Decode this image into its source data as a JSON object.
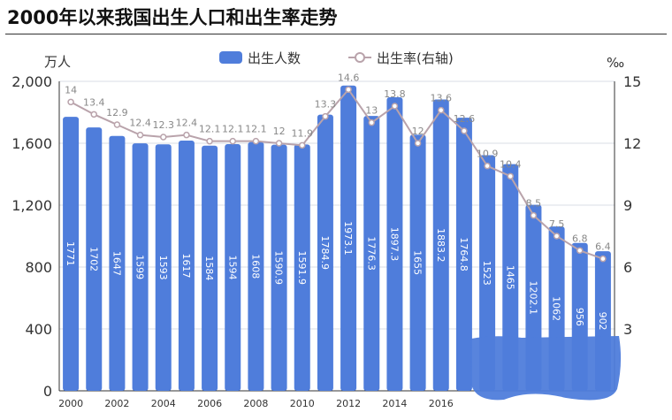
{
  "title": "2000年以来我国出生人口和出生率走势",
  "chart_data": {
    "type": "bar+line",
    "title": "2000年以来我国出生人口和出生率走势",
    "x": [
      2000,
      2001,
      2002,
      2003,
      2004,
      2005,
      2006,
      2007,
      2008,
      2009,
      2010,
      2011,
      2012,
      2013,
      2014,
      2015,
      2016,
      2017,
      2018,
      2019,
      2020,
      2021,
      2022,
      2023
    ],
    "xticks": [
      "2000",
      "2002",
      "2004",
      "2006",
      "2008",
      "2010",
      "2012",
      "2014",
      "2016"
    ],
    "series": [
      {
        "name": "出生人数",
        "type": "bar",
        "axis": "left",
        "color": "#4f7ddb",
        "values": [
          1771,
          1702,
          1647,
          1599,
          1593,
          1617,
          1584,
          1594,
          1608,
          1590.9,
          1591.9,
          1784.9,
          1973.1,
          1776.3,
          1897.3,
          1655,
          1883.2,
          1764.8,
          1523,
          1465,
          1202.1,
          1062,
          956,
          902
        ]
      },
      {
        "name": "出生率(右轴)",
        "type": "line",
        "axis": "right",
        "color": "#b9a3ab",
        "values": [
          14,
          13.4,
          12.9,
          12.4,
          12.3,
          12.4,
          12.1,
          12.1,
          12.1,
          12,
          11.9,
          13.3,
          14.6,
          13,
          13.8,
          12,
          13.6,
          12.6,
          10.9,
          10.4,
          8.5,
          7.5,
          6.8,
          6.4
        ]
      }
    ],
    "ylabel": "万人",
    "ylim": [
      0,
      2000
    ],
    "yticks": [
      "0",
      "400",
      "800",
      "1,200",
      "1,600",
      "2,000"
    ],
    "y2label": "‰",
    "y2lim": [
      0,
      15
    ],
    "y2ticks": [
      "3",
      "6",
      "9",
      "12",
      "15"
    ],
    "legend": "top-center",
    "grid": true
  }
}
